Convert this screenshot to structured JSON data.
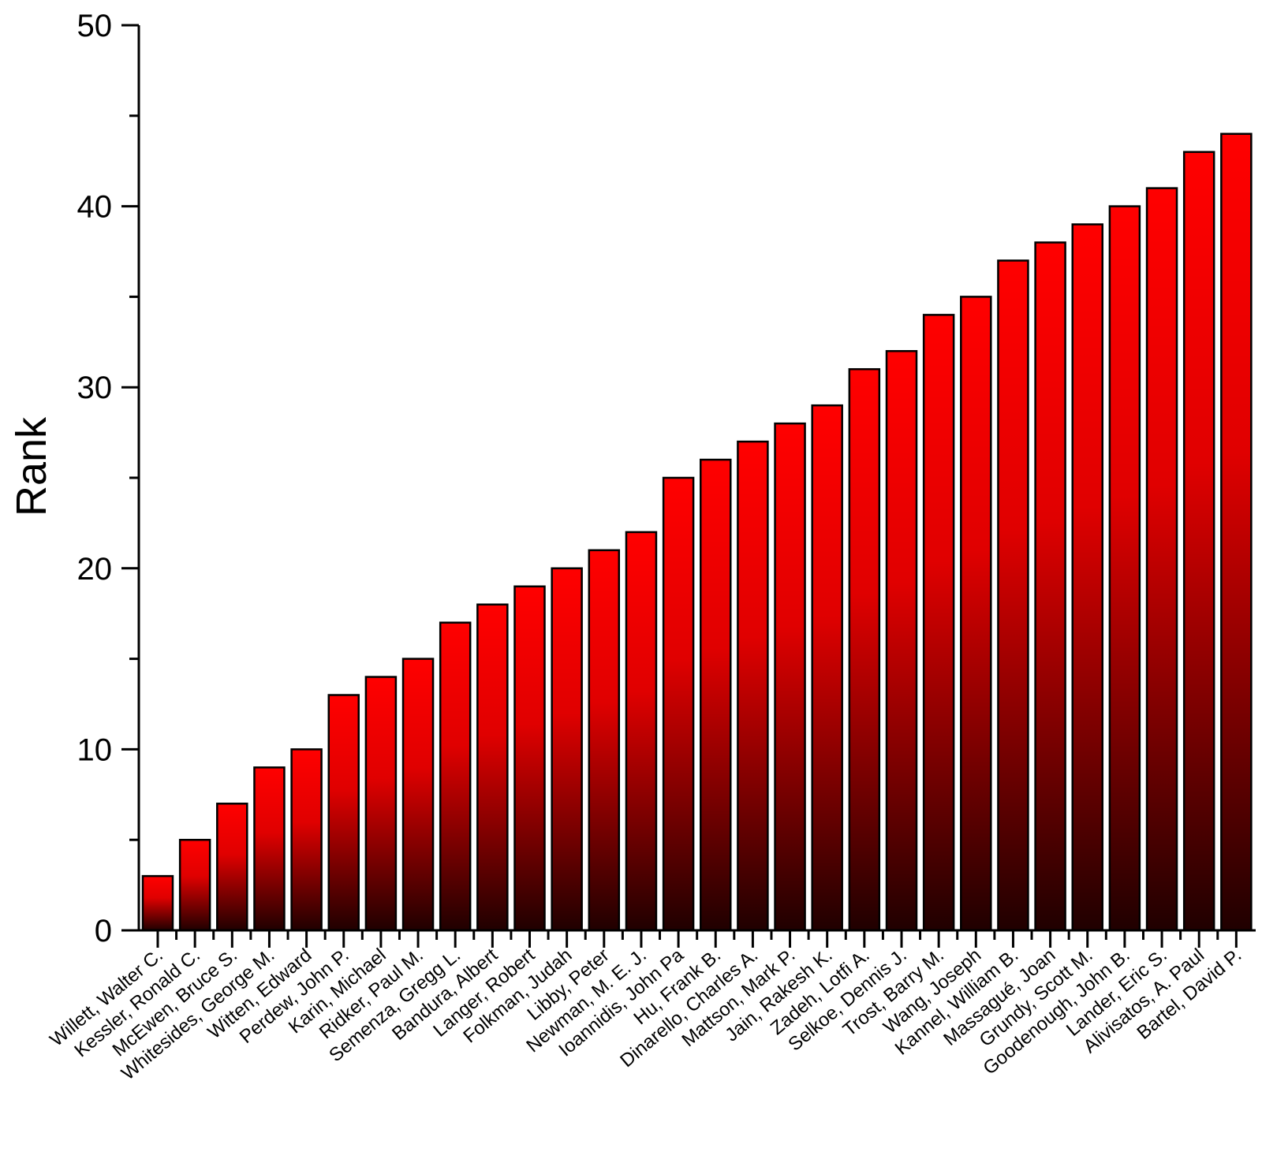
{
  "chart_data": {
    "type": "bar",
    "ylabel": "Rank",
    "xlabel": "",
    "ylim": [
      0,
      50
    ],
    "yticks": [
      0,
      10,
      20,
      30,
      40,
      50
    ],
    "grid": false,
    "bar_fill": {
      "top": "#ff0000",
      "bottom": "#200000"
    },
    "categories": [
      "Willett, Walter C.",
      "Kessler, Ronald C.",
      "McEwen, Bruce S.",
      "Whitesides, George M.",
      "Witten, Edward",
      "Perdew, John P.",
      "Karin, Michael",
      "Ridker, Paul M.",
      "Semenza, Gregg L.",
      "Bandura, Albert",
      "Langer, Robert",
      "Folkman, Judah",
      "Libby, Peter",
      "Newman, M. E. J.",
      "Ioannidis, John Pa",
      "Hu, Frank B.",
      "Dinarello, Charles A.",
      "Mattson, Mark P.",
      "Jain, Rakesh K.",
      "Zadeh, Lotfi A.",
      "Selkoe, Dennis J.",
      "Trost, Barry M.",
      "Wang, Joseph",
      "Kannel, William B.",
      "Massagué, Joan",
      "Grundy, Scott M.",
      "Goodenough, John B.",
      "Lander, Eric S.",
      "Alivisatos, A. Paul",
      "Bartel, David P."
    ],
    "values": [
      3,
      5,
      7,
      9,
      10,
      13,
      14,
      15,
      17,
      18,
      19,
      20,
      21,
      22,
      25,
      26,
      27,
      28,
      29,
      31,
      32,
      34,
      35,
      37,
      38,
      39,
      40,
      41,
      43,
      44
    ]
  }
}
